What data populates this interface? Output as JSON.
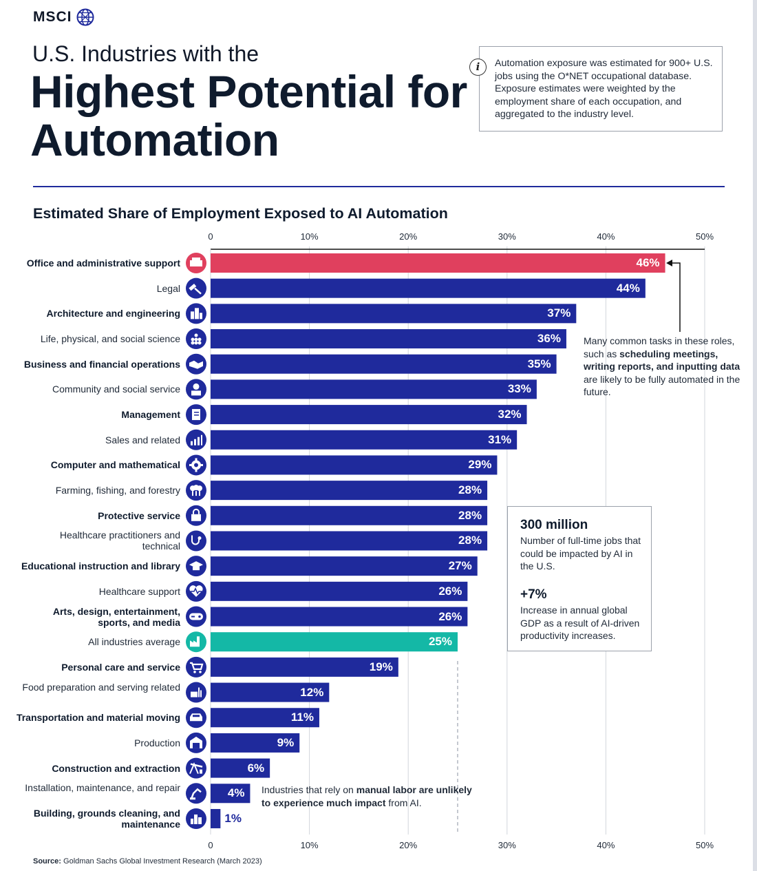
{
  "brand": {
    "name": "MSCI"
  },
  "header": {
    "title_line1": "U.S. Industries with the",
    "title_line2": "Highest Potential for Automation"
  },
  "info": {
    "icon": "info-icon",
    "text": "Automation exposure was estimated for 900+ U.S. jobs using the O*NET occupational database. Exposure estimates were weighted by the employment share of each occupation, and aggregated to the industry level."
  },
  "annotations": {
    "note1_a": "Many common tasks in these roles, such as ",
    "note1_b": "scheduling meetings, writing reports, and inputting data",
    "note1_c": " are likely to be fully automated in the future.",
    "note2_a": "Industries that rely on ",
    "note2_b": "manual labor are unlikely to experience much impact",
    "note2_c": " from AI."
  },
  "stats": {
    "stat1_value": "300 million",
    "stat1_desc": "Number of full-time jobs that could be impacted by AI in the U.S.",
    "stat2_value": "+7%",
    "stat2_desc": "Increase in annual global GDP as a result of AI-driven productivity increases."
  },
  "source": {
    "label": "Source:",
    "text": "Goldman Sachs Global Investment Research (March 2023)"
  },
  "colors": {
    "bar": "#1f2a9c",
    "highlight": "#e0405e",
    "average": "#14b8a6",
    "rule": "#1f2a9c"
  },
  "chart_data": {
    "type": "bar",
    "orientation": "horizontal",
    "title": "Estimated Share of Employment Exposed to AI Automation",
    "xlim": [
      0,
      50
    ],
    "xticks": [
      "0",
      "10%",
      "20%",
      "30%",
      "40%",
      "50%"
    ],
    "grid": true,
    "reference_line": {
      "value": 25,
      "style": "dashed"
    },
    "categories": [
      {
        "label": "Office and administrative support",
        "value": 46,
        "display": "46%",
        "bold": true,
        "kind": "highlight",
        "icon": "printer-icon"
      },
      {
        "label": "Legal",
        "value": 44,
        "display": "44%",
        "bold": false,
        "kind": "normal",
        "icon": "gavel-icon"
      },
      {
        "label": "Architecture and engineering",
        "value": 37,
        "display": "37%",
        "bold": true,
        "kind": "normal",
        "icon": "buildings-icon"
      },
      {
        "label": "Life, physical, and social science",
        "value": 36,
        "display": "36%",
        "bold": false,
        "kind": "normal",
        "icon": "flask-icon"
      },
      {
        "label": "Business and financial operations",
        "value": 35,
        "display": "35%",
        "bold": true,
        "kind": "normal",
        "icon": "handshake-icon"
      },
      {
        "label": "Community and social service",
        "value": 33,
        "display": "33%",
        "bold": false,
        "kind": "normal",
        "icon": "person-icon"
      },
      {
        "label": "Management",
        "value": 32,
        "display": "32%",
        "bold": true,
        "kind": "normal",
        "icon": "document-icon"
      },
      {
        "label": "Sales and related",
        "value": 31,
        "display": "31%",
        "bold": false,
        "kind": "normal",
        "icon": "bar-chart-icon"
      },
      {
        "label": "Computer and mathematical",
        "value": 29,
        "display": "29%",
        "bold": true,
        "kind": "normal",
        "icon": "gear-icon"
      },
      {
        "label": "Farming, fishing, and forestry",
        "value": 28,
        "display": "28%",
        "bold": false,
        "kind": "normal",
        "icon": "tree-icon"
      },
      {
        "label": "Protective service",
        "value": 28,
        "display": "28%",
        "bold": true,
        "kind": "normal",
        "icon": "lock-icon"
      },
      {
        "label": "Healthcare practitioners and technical",
        "value": 28,
        "display": "28%",
        "bold": false,
        "kind": "normal",
        "icon": "stethoscope-icon"
      },
      {
        "label": "Educational instruction and library",
        "value": 27,
        "display": "27%",
        "bold": true,
        "kind": "normal",
        "icon": "graduation-cap-icon"
      },
      {
        "label": "Healthcare support",
        "value": 26,
        "display": "26%",
        "bold": false,
        "kind": "normal",
        "icon": "heartbeat-icon"
      },
      {
        "label": "Arts, design, entertainment, sports, and media",
        "value": 26,
        "display": "26%",
        "bold": true,
        "kind": "normal",
        "icon": "gamepad-icon"
      },
      {
        "label": "All industries average",
        "value": 25,
        "display": "25%",
        "bold": false,
        "kind": "average",
        "icon": "factory-icon"
      },
      {
        "label": "Personal care and service",
        "value": 19,
        "display": "19%",
        "bold": true,
        "kind": "normal",
        "icon": "cart-icon"
      },
      {
        "label": "Food preparation and serving related",
        "value": 12,
        "display": "12%",
        "bold": false,
        "kind": "normal",
        "icon": "food-icon"
      },
      {
        "label": "Transportation and material moving",
        "value": 11,
        "display": "11%",
        "bold": true,
        "kind": "normal",
        "icon": "car-icon"
      },
      {
        "label": "Production",
        "value": 9,
        "display": "9%",
        "bold": false,
        "kind": "normal",
        "icon": "warehouse-icon"
      },
      {
        "label": "Construction and extraction",
        "value": 6,
        "display": "6%",
        "bold": true,
        "kind": "normal",
        "icon": "oil-pump-icon"
      },
      {
        "label": "Installation, maintenance, and repair",
        "value": 4,
        "display": "4%",
        "bold": false,
        "kind": "normal",
        "icon": "robot-arm-icon"
      },
      {
        "label": "Building, grounds cleaning, and maintenance",
        "value": 1,
        "display": "1%",
        "bold": true,
        "kind": "normal",
        "icon": "cleaning-icon"
      }
    ]
  }
}
